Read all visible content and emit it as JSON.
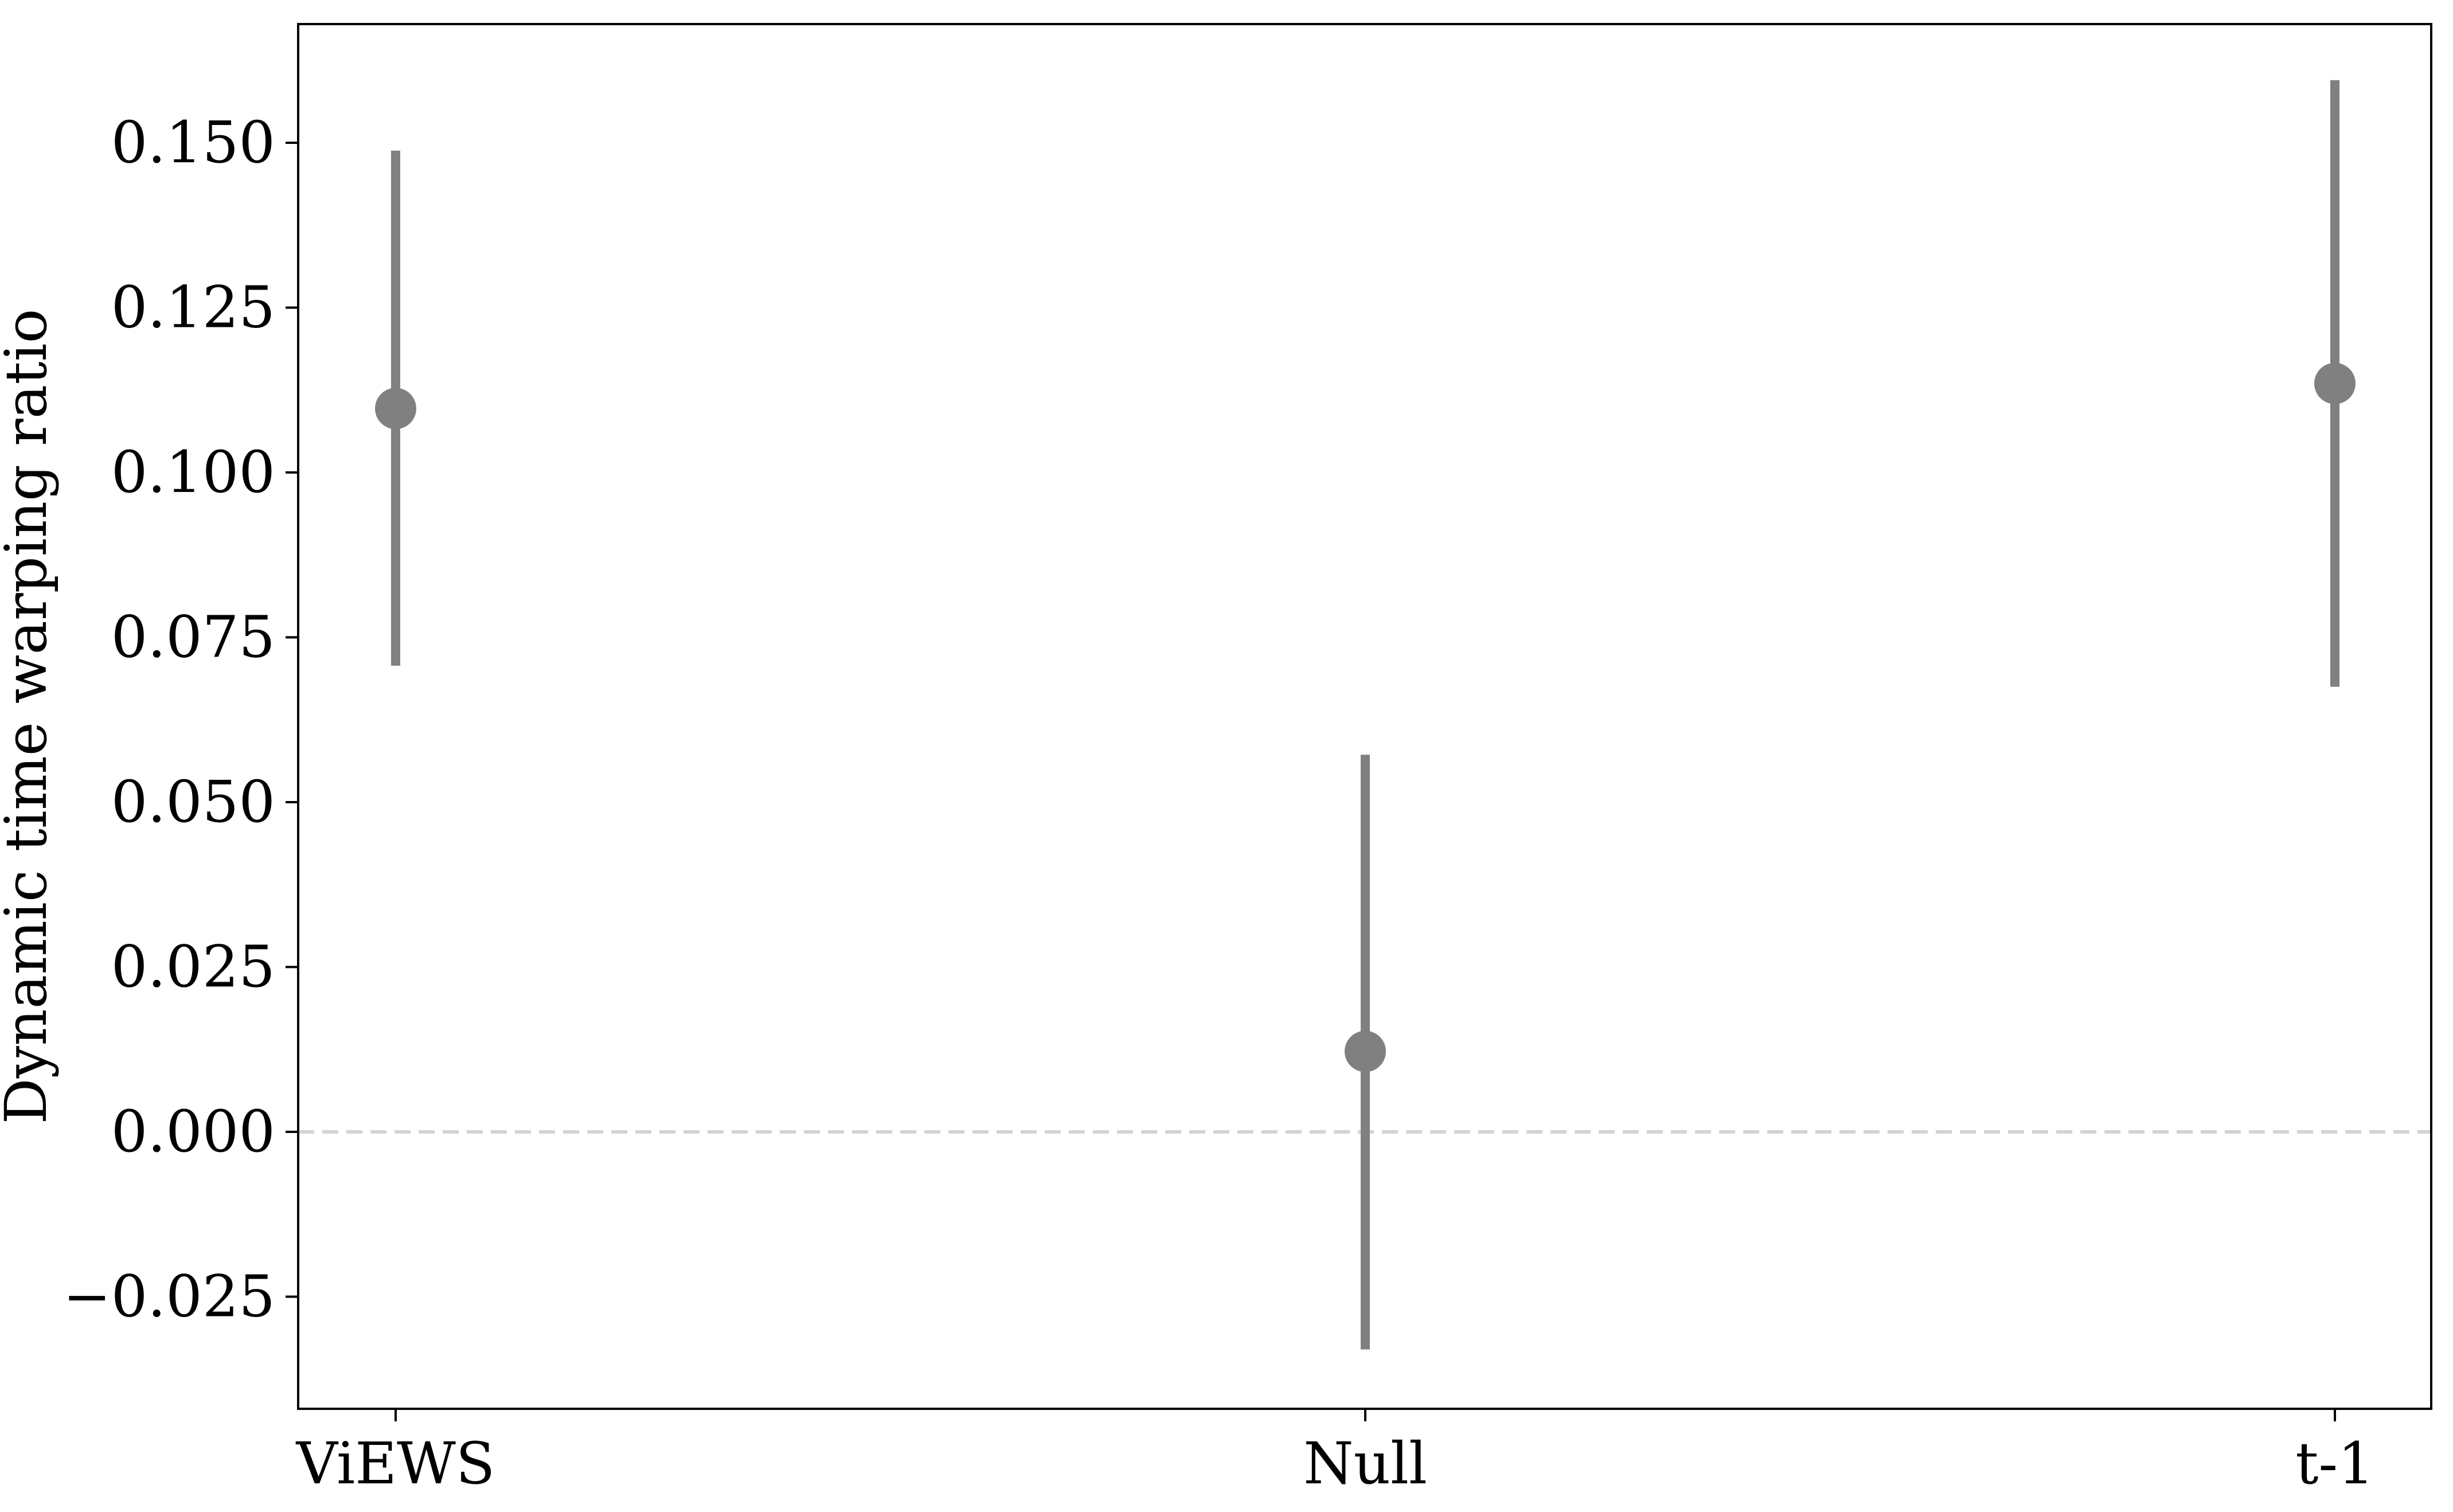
{
  "chart_data": {
    "type": "point-errorbar",
    "title": "",
    "xlabel": "",
    "ylabel": "Dynamic time warping ratio",
    "categories": [
      "ViEWS",
      "Null",
      "t-1"
    ],
    "series": [
      {
        "values": [
          0.1097,
          0.0122,
          0.1135
        ],
        "lower": [
          0.0707,
          -0.033,
          0.0675
        ],
        "upper": [
          0.1488,
          0.0572,
          0.1595
        ]
      }
    ],
    "ylim": [
      -0.042,
      0.168
    ],
    "yticks": [
      -0.025,
      0.0,
      0.025,
      0.05,
      0.075,
      0.1,
      0.125,
      0.15
    ],
    "ytick_labels": [
      "−0.025",
      "0.000",
      "0.025",
      "0.050",
      "0.075",
      "0.100",
      "0.125",
      "0.150"
    ],
    "reference_line": {
      "y": 0.0,
      "style": "dashed"
    },
    "grid": false,
    "legend": "none",
    "colors": {
      "marker": "#808080",
      "errorbar": "#808080",
      "reference_line": "#d3d3d3",
      "axes": "#000000"
    }
  }
}
